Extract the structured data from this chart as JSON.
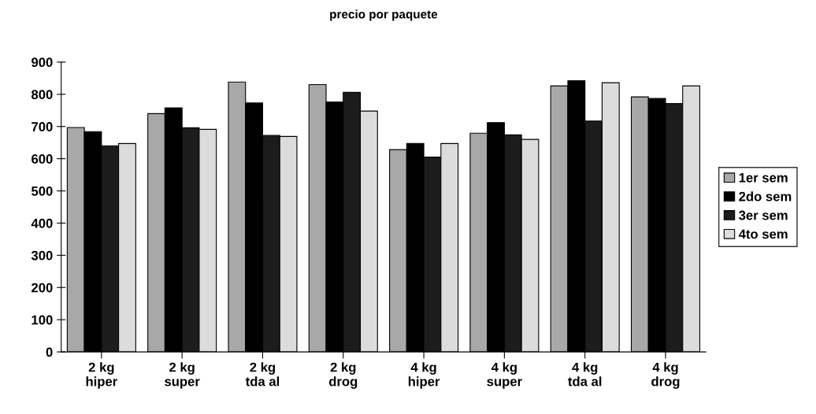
{
  "chart_data": {
    "type": "bar",
    "title": "precio por paquete",
    "categories": [
      "2 kg\nhiper",
      "2 kg\nsuper",
      "2 kg\ntda al",
      "2 kg\ndrog",
      "4 kg\nhiper",
      "4 kg\nsuper",
      "4 kg\ntda al",
      "4 kg\ndrog"
    ],
    "series": [
      {
        "name": "1er sem",
        "color": "#a8a8a8",
        "values": [
          697,
          740,
          838,
          830,
          628,
          679,
          826,
          792
        ]
      },
      {
        "name": "2do sem",
        "color": "#000000",
        "values": [
          684,
          758,
          773,
          776,
          647,
          712,
          842,
          787
        ]
      },
      {
        "name": "3er sem",
        "color": "#1c1c1c",
        "values": [
          640,
          696,
          672,
          806,
          605,
          674,
          717,
          771
        ]
      },
      {
        "name": "4to sem",
        "color": "#dcdcdc",
        "values": [
          647,
          691,
          669,
          748,
          647,
          660,
          836,
          826
        ]
      }
    ],
    "ylim": [
      0,
      900
    ],
    "yticks": [
      0,
      100,
      200,
      300,
      400,
      500,
      600,
      700,
      800,
      900
    ],
    "grid": false,
    "legend": "right"
  }
}
